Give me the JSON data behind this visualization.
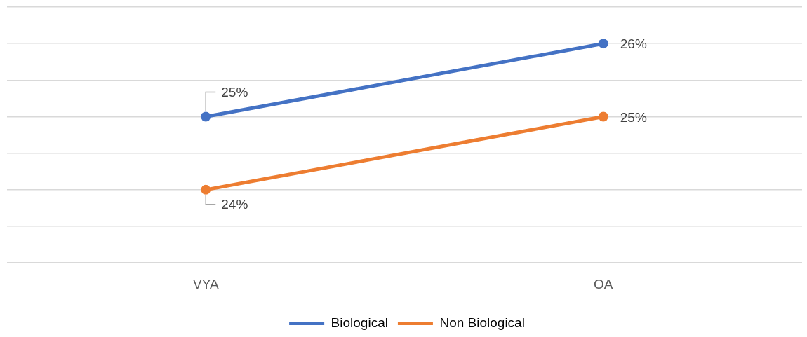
{
  "chart_data": {
    "type": "line",
    "categories": [
      "VYA",
      "OA"
    ],
    "series": [
      {
        "name": "Biological",
        "color": "#4472c4",
        "values": [
          25,
          26
        ],
        "value_labels": [
          "25%",
          "26%"
        ]
      },
      {
        "name": "Non Biological",
        "color": "#ed7d31",
        "values": [
          24,
          25
        ],
        "value_labels": [
          "24%",
          "25%"
        ]
      }
    ],
    "ylim": [
      23,
      26.5
    ],
    "yticks": [
      {
        "value": 23,
        "label": null
      },
      {
        "value": 23.5,
        "label": null
      },
      {
        "value": 24,
        "label": null
      },
      {
        "value": 24.5,
        "label": null
      },
      {
        "value": 25,
        "label": null
      },
      {
        "value": 25.5,
        "label": null
      },
      {
        "value": 26,
        "label": null
      },
      {
        "value": 26.5,
        "label": null
      }
    ],
    "grid": "y",
    "legend": "bottom",
    "marker": "circle",
    "line_style": "solid",
    "tick_labels": "x"
  }
}
